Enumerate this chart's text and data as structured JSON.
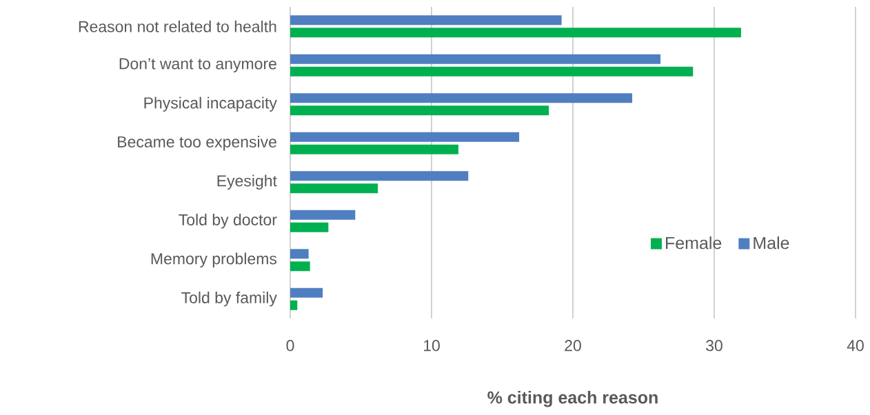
{
  "chart_data": {
    "type": "bar",
    "orientation": "horizontal",
    "xlabel": "% citing each reason",
    "categories": [
      "Reason not related to health",
      "Don’t want to anymore",
      "Physical incapacity",
      "Became too expensive",
      "Eyesight",
      "Told by  doctor",
      "Memory problems",
      "Told by family"
    ],
    "series": [
      {
        "name": "Female",
        "color": "#00b050",
        "values": [
          31.9,
          28.5,
          18.3,
          11.9,
          6.2,
          2.7,
          1.4,
          0.5
        ]
      },
      {
        "name": "Male",
        "color": "#4f7fc0",
        "values": [
          19.2,
          26.2,
          24.2,
          16.2,
          12.6,
          4.6,
          1.3,
          2.3
        ]
      }
    ],
    "xlim": [
      0,
      40
    ],
    "xticks": [
      0,
      10,
      20,
      30,
      40
    ],
    "grid": "x",
    "legend": "right"
  }
}
